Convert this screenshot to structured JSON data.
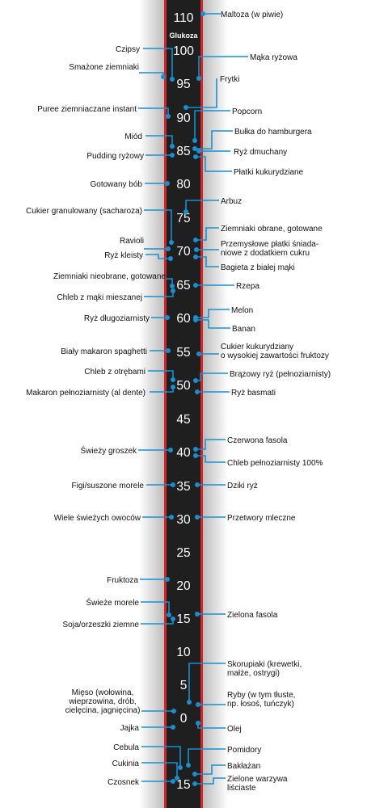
{
  "header": "Glukoza",
  "colors": {
    "bar": "#1f1f1f",
    "border": "#d3262b",
    "leader": "#1a8fd0",
    "dot": "#1a8fd0",
    "label": "#111111"
  },
  "scale": [
    "110",
    "100",
    "95",
    "90",
    "85",
    "80",
    "75",
    "70",
    "65",
    "60",
    "55",
    "50",
    "45",
    "40",
    "35",
    "30",
    "25",
    "20",
    "15",
    "10",
    "5",
    "0",
    "15"
  ],
  "items": [
    {
      "text": "Maltoza (w piwie)",
      "side": "right"
    },
    {
      "text": "Czipsy",
      "side": "left"
    },
    {
      "text": "Mąka ryżowa",
      "side": "right"
    },
    {
      "text": "Smażone ziemniaki",
      "side": "left"
    },
    {
      "text": "Frytki",
      "side": "right"
    },
    {
      "text": "Puree ziemniaczane instant",
      "side": "left"
    },
    {
      "text": "Popcorn",
      "side": "right"
    },
    {
      "text": "Miód",
      "side": "left"
    },
    {
      "text": "Bułka do hamburgera",
      "side": "right"
    },
    {
      "text": "Ryż dmuchany",
      "side": "right"
    },
    {
      "text": "Pudding ryżowy",
      "side": "left"
    },
    {
      "text": "Płatki kukurydziane",
      "side": "right"
    },
    {
      "text": "Gotowany bób",
      "side": "left"
    },
    {
      "text": "Arbuz",
      "side": "right"
    },
    {
      "text": "Cukier granulowany (sacharoza)",
      "side": "left"
    },
    {
      "text": "Ziemniaki obrane, gotowane",
      "side": "right"
    },
    {
      "text": "Ravioli",
      "side": "left"
    },
    {
      "text": "Przemysłowe płatki śniada-\nniowe z dodatkiem cukru",
      "side": "right"
    },
    {
      "text": "Ryż kleisty",
      "side": "left"
    },
    {
      "text": "Bagieta z białej mąki",
      "side": "right"
    },
    {
      "text": "Ziemniaki nieobrane, gotowane",
      "side": "left"
    },
    {
      "text": "Rzepa",
      "side": "right"
    },
    {
      "text": "Chleb z mąki mieszanej",
      "side": "left"
    },
    {
      "text": "Melon",
      "side": "right"
    },
    {
      "text": "Ryż długoziarnisty",
      "side": "left"
    },
    {
      "text": "Banan",
      "side": "right"
    },
    {
      "text": "Biały makaron spaghetti",
      "side": "left"
    },
    {
      "text": "Cukier kukurydziany\no wysokiej zawartości fruktozy",
      "side": "right"
    },
    {
      "text": "Chleb z otrębami",
      "side": "left"
    },
    {
      "text": "Brązowy ryż (pełnoziarnisty)",
      "side": "right"
    },
    {
      "text": "Makaron pełnoziarnisty (al dente)",
      "side": "left"
    },
    {
      "text": "Ryż basmati",
      "side": "right"
    },
    {
      "text": "Czerwona fasola",
      "side": "right"
    },
    {
      "text": "Świeży groszek",
      "side": "left"
    },
    {
      "text": "Chleb pełnoziarnisty 100%",
      "side": "right"
    },
    {
      "text": "Figi/suszone morele",
      "side": "left"
    },
    {
      "text": "Dziki ryż",
      "side": "right"
    },
    {
      "text": "Wiele świeżych owoców",
      "side": "left"
    },
    {
      "text": "Przetwory mleczne",
      "side": "right"
    },
    {
      "text": "Fruktoza",
      "side": "left"
    },
    {
      "text": "Świeże morele",
      "side": "left"
    },
    {
      "text": "Zielona fasola",
      "side": "right"
    },
    {
      "text": "Soja/orzeszki ziemne",
      "side": "left"
    },
    {
      "text": "Skorupiaki (krewetki,\nmałże, ostrygi)",
      "side": "right"
    },
    {
      "text": "Mięso (wołowina,\nwieprzowina, drób,\ncielęcina, jagnięcina)",
      "side": "left"
    },
    {
      "text": "Ryby (w tym tłuste,\nnp. łosoś, tuńczyk)",
      "side": "right"
    },
    {
      "text": "Jajka",
      "side": "left"
    },
    {
      "text": "Olej",
      "side": "right"
    },
    {
      "text": "Cebula",
      "side": "left"
    },
    {
      "text": "Pomidory",
      "side": "right"
    },
    {
      "text": "Cukinia",
      "side": "left"
    },
    {
      "text": "Bakłażan",
      "side": "right"
    },
    {
      "text": "Czosnek",
      "side": "left"
    },
    {
      "text": "Zielone warzywa\nliściaste",
      "side": "right"
    }
  ]
}
